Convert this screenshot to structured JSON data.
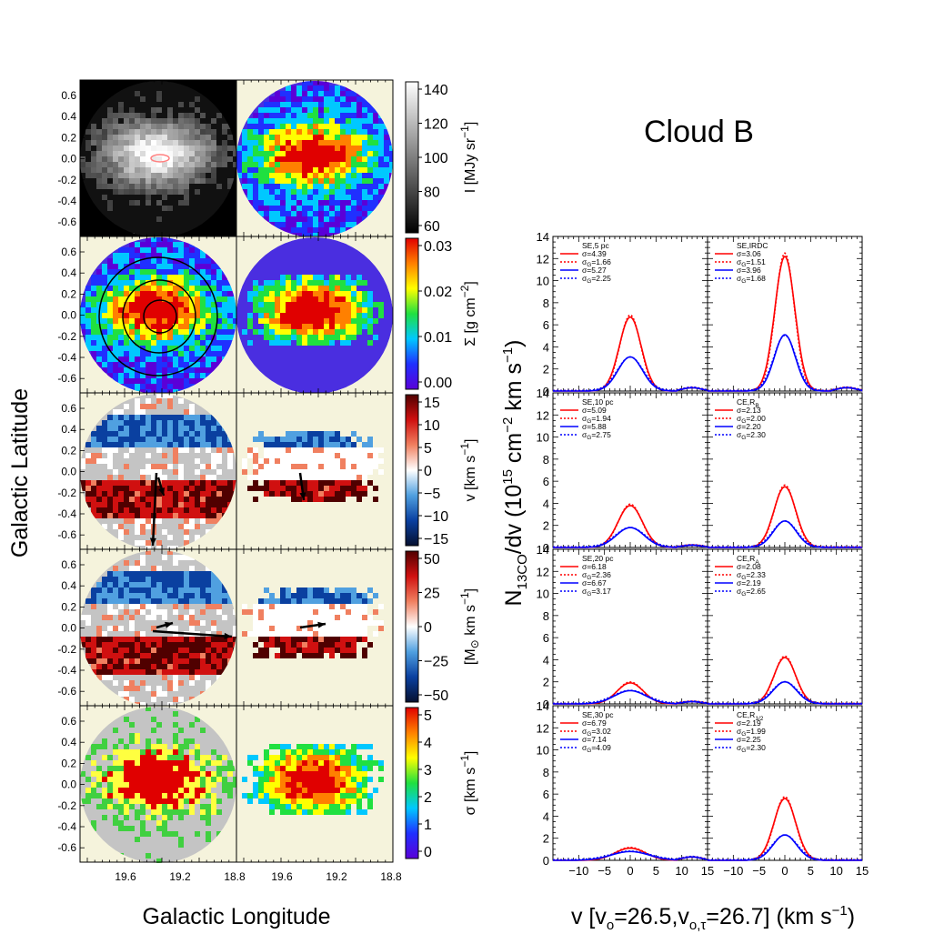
{
  "figure": {
    "title": "Cloud B",
    "left_xlabel": "Galactic Longitude",
    "left_ylabel": "Galactic Latitude",
    "map_lat_ticks": [
      "0.6",
      "0.4",
      "0.2",
      "0.0",
      "-0.2",
      "-0.4",
      "-0.6"
    ],
    "map_lon_ticks": [
      "19.6",
      "19.2",
      "18.8"
    ],
    "spec_ylabel_parts": [
      "N",
      "13CO",
      "/dv (10",
      "15",
      " cm",
      "−2",
      " km s",
      "−1",
      ")"
    ],
    "spec_xlabel_parts": [
      "v [v",
      "o",
      "=26.5,v",
      "o,τ",
      "=26.7] (km s",
      "−1",
      ")"
    ],
    "spec_x_ticks": [
      "−10",
      "−5",
      "0",
      "5",
      "10",
      "15"
    ],
    "spec_y_ticks": [
      "0",
      "2",
      "4",
      "6",
      "8",
      "10",
      "12",
      "14"
    ]
  },
  "colorbars": [
    {
      "name": "intensity",
      "ticks": [
        "140",
        "120",
        "100",
        "80",
        "60"
      ],
      "label": "I [MJy sr",
      "label_sup": "−1",
      "label_end": "]",
      "colors": [
        "#000000",
        "#ffffff"
      ]
    },
    {
      "name": "surface-density",
      "ticks": [
        "0.03",
        "0.02",
        "0.01",
        "0.00"
      ],
      "label": "Σ [g cm",
      "label_sup": "−2",
      "label_end": "]",
      "colors": [
        "#5a00d8",
        "#2030ff",
        "#00c8ff",
        "#20e040",
        "#ffff00",
        "#ff8000",
        "#e00000"
      ]
    },
    {
      "name": "velocity",
      "ticks": [
        "15",
        "10",
        "5",
        "0",
        "−5",
        "−10",
        "−15"
      ],
      "label": "v [km s",
      "label_sup": "−1",
      "label_end": "]",
      "colors": [
        "#051030",
        "#0a40a0",
        "#50a0e0",
        "#ffffff",
        "#f08060",
        "#d01010",
        "#500000"
      ]
    },
    {
      "name": "momentum",
      "ticks": [
        "50",
        "25",
        "0",
        "−25",
        "−50"
      ],
      "label": "[M",
      "label_sub": "⊙",
      "label_mid": " km s",
      "label_sup": "−1",
      "label_end": "]",
      "colors": [
        "#051030",
        "#0a40a0",
        "#50a0e0",
        "#ffffff",
        "#f08060",
        "#d01010",
        "#500000"
      ]
    },
    {
      "name": "dispersion",
      "ticks": [
        "5",
        "4",
        "3",
        "2",
        "1",
        "0"
      ],
      "label": "σ [km s",
      "label_sup": "−1",
      "label_end": "]",
      "colors": [
        "#5a00d8",
        "#2030ff",
        "#00c8ff",
        "#20e040",
        "#ffff00",
        "#ff8000",
        "#e00000"
      ]
    }
  ],
  "chart_data": {
    "type": "line",
    "xlim": [
      -15,
      15
    ],
    "ylim": [
      0,
      14
    ],
    "series_colors": {
      "red": "#ff0000",
      "blue": "#0000ff"
    },
    "panels": [
      {
        "label": "SE,5 pc",
        "label_sub": "",
        "rs": "σ=4.39",
        "rg": "1.66",
        "bs": "σ=5.27",
        "bg": "2.25",
        "red_peak": 6.7,
        "blue_peak": 3.1,
        "red_fwhm": 5.0,
        "blue_fwhm": 5.6,
        "wing": 0.3
      },
      {
        "label": "SE,IRDC",
        "label_sub": "",
        "rs": "σ=3.06",
        "rg": "1.51",
        "bs": "σ=3.96",
        "bg": "1.68",
        "red_peak": 12.2,
        "blue_peak": 5.1,
        "red_fwhm": 4.6,
        "blue_fwhm": 4.8,
        "wing": 0.3
      },
      {
        "label": "SE,10 pc",
        "label_sub": "",
        "rs": "σ=5.09",
        "rg": "1.94",
        "bs": "σ=5.88",
        "bg": "2.75",
        "red_peak": 3.8,
        "blue_peak": 1.8,
        "red_fwhm": 5.6,
        "blue_fwhm": 6.4,
        "wing": 0.2
      },
      {
        "label": "CE,R",
        "label_sub": "B",
        "rs": "σ=2.13",
        "rg": "2.00",
        "bs": "σ=2.20",
        "bg": "2.30",
        "red_peak": 5.5,
        "blue_peak": 2.4,
        "red_fwhm": 5.0,
        "blue_fwhm": 5.2,
        "wing": 0.0
      },
      {
        "label": "SE,20 pc",
        "label_sub": "",
        "rs": "σ=6.18",
        "rg": "2.36",
        "bs": "σ=6.67",
        "bg": "3.17",
        "red_peak": 1.9,
        "blue_peak": 1.2,
        "red_fwhm": 6.0,
        "blue_fwhm": 7.2,
        "wing": 0.2
      },
      {
        "label": "CE,R",
        "label_sub": "A",
        "rs": "σ=2.08",
        "rg": "2.33",
        "bs": "σ=2.19",
        "bg": "2.65",
        "red_peak": 4.2,
        "blue_peak": 2.0,
        "red_fwhm": 5.0,
        "blue_fwhm": 5.4,
        "wing": 0.0
      },
      {
        "label": "SE,30 pc",
        "label_sub": "",
        "rs": "σ=6.79",
        "rg": "3.02",
        "bs": "σ=7.14",
        "bg": "4.09",
        "red_peak": 1.1,
        "blue_peak": 0.8,
        "red_fwhm": 7.0,
        "blue_fwhm": 8.5,
        "wing": 0.3
      },
      {
        "label": "CE,R",
        "label_sub": "1/2",
        "rs": "σ=2.19",
        "rg": "1.99",
        "bs": "σ=2.25",
        "bg": "2.30",
        "red_peak": 5.6,
        "blue_peak": 2.3,
        "red_fwhm": 5.0,
        "blue_fwhm": 5.4,
        "wing": 0.0
      }
    ]
  }
}
